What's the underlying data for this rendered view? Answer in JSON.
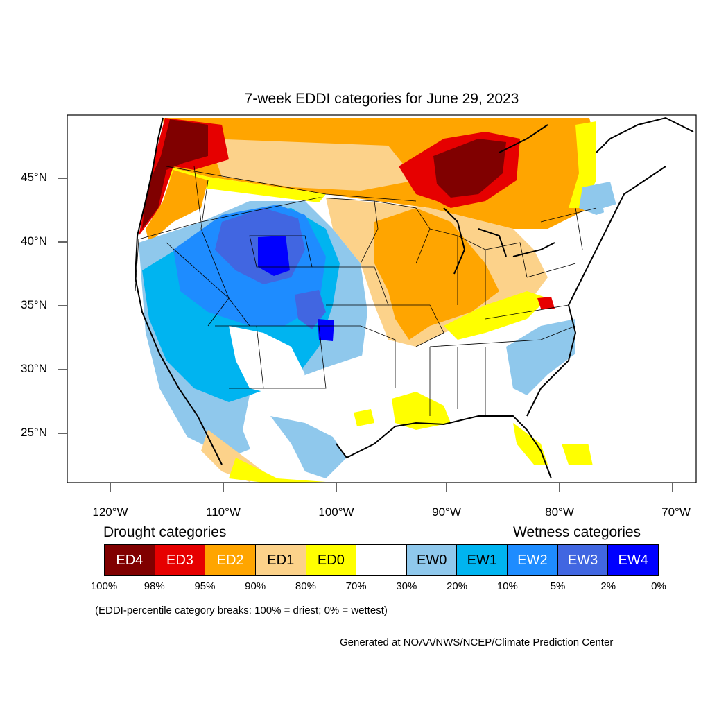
{
  "map": {
    "title": "7-week EDDI categories for June 29, 2023",
    "lat_labels": [
      "45°N",
      "40°N",
      "35°N",
      "30°N",
      "25°N"
    ],
    "lon_labels": [
      "120°W",
      "110°W",
      "100°W",
      "90°W",
      "80°W",
      "70°W"
    ],
    "regions": [
      {
        "name": "pacific-northwest-coast",
        "category": "ED4"
      },
      {
        "name": "northern-tier",
        "category": "ED2"
      },
      {
        "name": "upper-great-lakes",
        "category": "ED4"
      },
      {
        "name": "midwest",
        "category": "ED2"
      },
      {
        "name": "ohio-valley",
        "category": "ED1"
      },
      {
        "name": "gulf-coast",
        "category": "ED0"
      },
      {
        "name": "intermountain-west",
        "category": "EW2"
      },
      {
        "name": "wyoming-colorado",
        "category": "EW4"
      },
      {
        "name": "southwest",
        "category": "EW1"
      },
      {
        "name": "southeast",
        "category": "EW0"
      },
      {
        "name": "northeast",
        "category": "EW0"
      }
    ]
  },
  "legend": {
    "drought_heading": "Drought categories",
    "wetness_heading": "Wetness categories",
    "categories": [
      {
        "label": "ED4",
        "color": "#800000",
        "text_color": "#ffffff"
      },
      {
        "label": "ED3",
        "color": "#e60000",
        "text_color": "#ffffff"
      },
      {
        "label": "ED2",
        "color": "#ffa500",
        "text_color": "#ffffff"
      },
      {
        "label": "ED1",
        "color": "#fcd28a",
        "text_color": "#000000"
      },
      {
        "label": "ED0",
        "color": "#ffff00",
        "text_color": "#000000"
      },
      {
        "label": "",
        "color": "#ffffff",
        "text_color": "#000000"
      },
      {
        "label": "EW0",
        "color": "#8fc8ec",
        "text_color": "#000000"
      },
      {
        "label": "EW1",
        "color": "#00b4f0",
        "text_color": "#000000"
      },
      {
        "label": "EW2",
        "color": "#1e8cff",
        "text_color": "#ffffff"
      },
      {
        "label": "EW3",
        "color": "#4166e1",
        "text_color": "#ffffff"
      },
      {
        "label": "EW4",
        "color": "#0000ff",
        "text_color": "#ffffff"
      }
    ],
    "percentiles": [
      "100%",
      "98%",
      "95%",
      "90%",
      "80%",
      "70%",
      "30%",
      "20%",
      "10%",
      "5%",
      "2%",
      "0%"
    ]
  },
  "note": "(EDDI-percentile category breaks: 100% = driest; 0% = wettest)",
  "credit": "Generated at NOAA/NWS/NCEP/Climate Prediction Center"
}
